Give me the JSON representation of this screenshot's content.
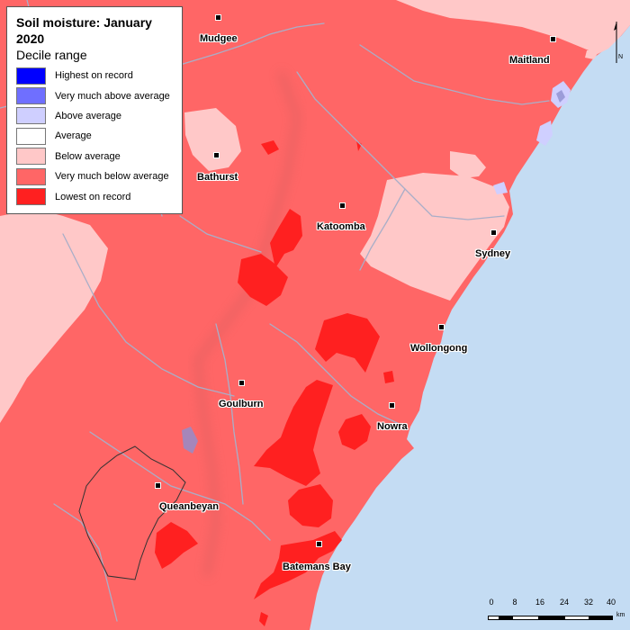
{
  "map": {
    "title": "Soil moisture: January 2020",
    "subtitle": "Decile range",
    "colors": {
      "ocean": "#c4dcf3",
      "very_much_below": "#ff6666",
      "below": "#ffc8c8",
      "lowest": "#ff2020",
      "above": "#d0d0ff",
      "very_much_above": "#7a7aff",
      "highest": "#0000ff",
      "average": "#ffffff",
      "rivers": "#a9aec8"
    },
    "legend": [
      {
        "label": "Highest on record",
        "color": "#0000ff"
      },
      {
        "label": "Very much above average",
        "color": "#6f6fff"
      },
      {
        "label": "Above average",
        "color": "#cfcfff"
      },
      {
        "label": "Average",
        "color": "#ffffff"
      },
      {
        "label": "Below average",
        "color": "#ffc8c8"
      },
      {
        "label": "Very much below average",
        "color": "#ff6666"
      },
      {
        "label": "Lowest on record",
        "color": "#ff2020"
      }
    ],
    "towns": [
      "Mudgee",
      "Maitland",
      "Bathurst",
      "Katoomba",
      "Sydney",
      "Wollongong",
      "Goulburn",
      "Nowra",
      "Queanbeyan",
      "Batemans Bay"
    ],
    "scale": {
      "ticks": [
        "0",
        "8",
        "16",
        "24",
        "32",
        "40"
      ],
      "unit": "km"
    },
    "north_label": "N"
  }
}
